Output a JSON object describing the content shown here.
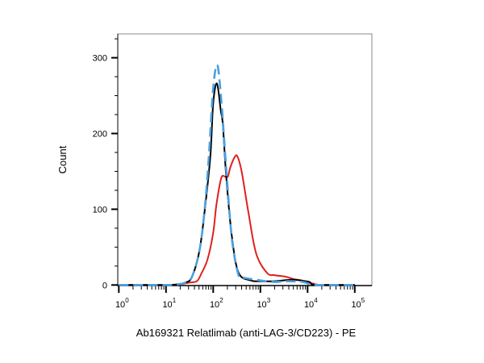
{
  "chart_data": {
    "type": "line",
    "title": "",
    "xlabel": "Ab169321 Relatlimab (anti-LAG-3/CD223) - PE",
    "ylabel": "Count",
    "x_scale": "log",
    "xlim": [
      1,
      100000
    ],
    "ylim": [
      0,
      330
    ],
    "grid": false,
    "legend": "none",
    "x_ticks": [
      {
        "base": "10",
        "exp": "0"
      },
      {
        "base": "10",
        "exp": "1"
      },
      {
        "base": "10",
        "exp": "2"
      },
      {
        "base": "10",
        "exp": "3"
      },
      {
        "base": "10",
        "exp": "4"
      },
      {
        "base": "10",
        "exp": "5"
      }
    ],
    "y_ticks": [
      "0",
      "100",
      "200",
      "300"
    ],
    "series": [
      {
        "color": "#e02020",
        "style": "solid",
        "x": [
          1,
          10,
          20,
          30,
          45,
          56,
          76,
          100,
          117,
          148,
          180,
          204,
          230,
          280,
          324,
          400,
          550,
          810,
          1380,
          2000,
          3400,
          5000,
          7600,
          10000,
          13000,
          20000,
          100000
        ],
        "y": [
          0,
          0,
          1,
          3,
          5,
          15,
          34,
          69,
          106,
          141,
          143,
          143,
          155,
          168,
          170,
          150,
          98,
          42,
          16,
          13,
          11,
          8,
          6,
          4,
          2,
          0,
          0
        ]
      },
      {
        "color": "#000000",
        "style": "solid",
        "x": [
          1,
          10,
          18,
          25,
          35,
          51,
          66,
          87,
          100,
          120,
          145,
          160,
          190,
          250,
          346,
          630,
          1000,
          2000,
          4500,
          7000,
          11000,
          15000,
          100000
        ],
        "y": [
          0,
          0,
          1,
          3,
          10,
          45,
          98,
          170,
          240,
          266,
          230,
          212,
          141,
          63,
          16,
          6,
          5,
          5,
          7,
          6,
          4,
          0,
          0
        ]
      },
      {
        "color": "#4a9fe0",
        "style": "dashed",
        "x": [
          1,
          10,
          18,
          25,
          35,
          51,
          66,
          81,
          100,
          123,
          150,
          162,
          195,
          250,
          340,
          420,
          1000,
          2000,
          4000,
          8000,
          15000,
          100000
        ],
        "y": [
          0,
          0,
          1,
          3,
          10,
          45,
          100,
          170,
          260,
          290,
          240,
          212,
          141,
          60,
          14,
          10,
          6,
          4,
          5,
          4,
          0,
          0
        ]
      }
    ]
  }
}
